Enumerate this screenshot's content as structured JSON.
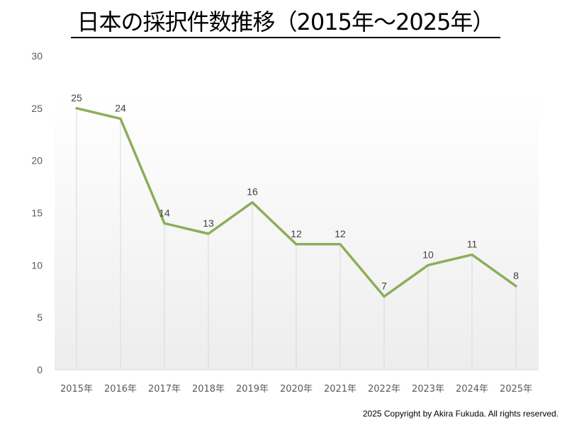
{
  "title": "日本の採択件数推移（2015年～2025年）",
  "copyright": "2025 Copyright by Akira Fukuda.  All rights reserved.",
  "colors": {
    "line": "#8CAE5A",
    "gridline": "#D9D9D9",
    "axis_text": "#595959",
    "label_text": "#404040",
    "plot_bg_top": "#FFFFFF",
    "plot_bg_bottom": "#EDEDED"
  },
  "chart_data": {
    "type": "line",
    "title": "日本の採択件数推移（2015年～2025年）",
    "xlabel": "",
    "ylabel": "",
    "categories": [
      "2015年",
      "2016年",
      "2017年",
      "2018年",
      "2019年",
      "2020年",
      "2021年",
      "2022年",
      "2023年",
      "2024年",
      "2025年"
    ],
    "series": [
      {
        "name": "採択件数",
        "values": [
          25,
          24,
          14,
          13,
          16,
          12,
          12,
          7,
          10,
          11,
          8
        ]
      }
    ],
    "yticks": [
      0,
      5,
      10,
      15,
      20,
      25,
      30
    ],
    "ylim": [
      0,
      30
    ],
    "grid": "vertical drop lines",
    "legend": "none",
    "data_labels": true
  }
}
